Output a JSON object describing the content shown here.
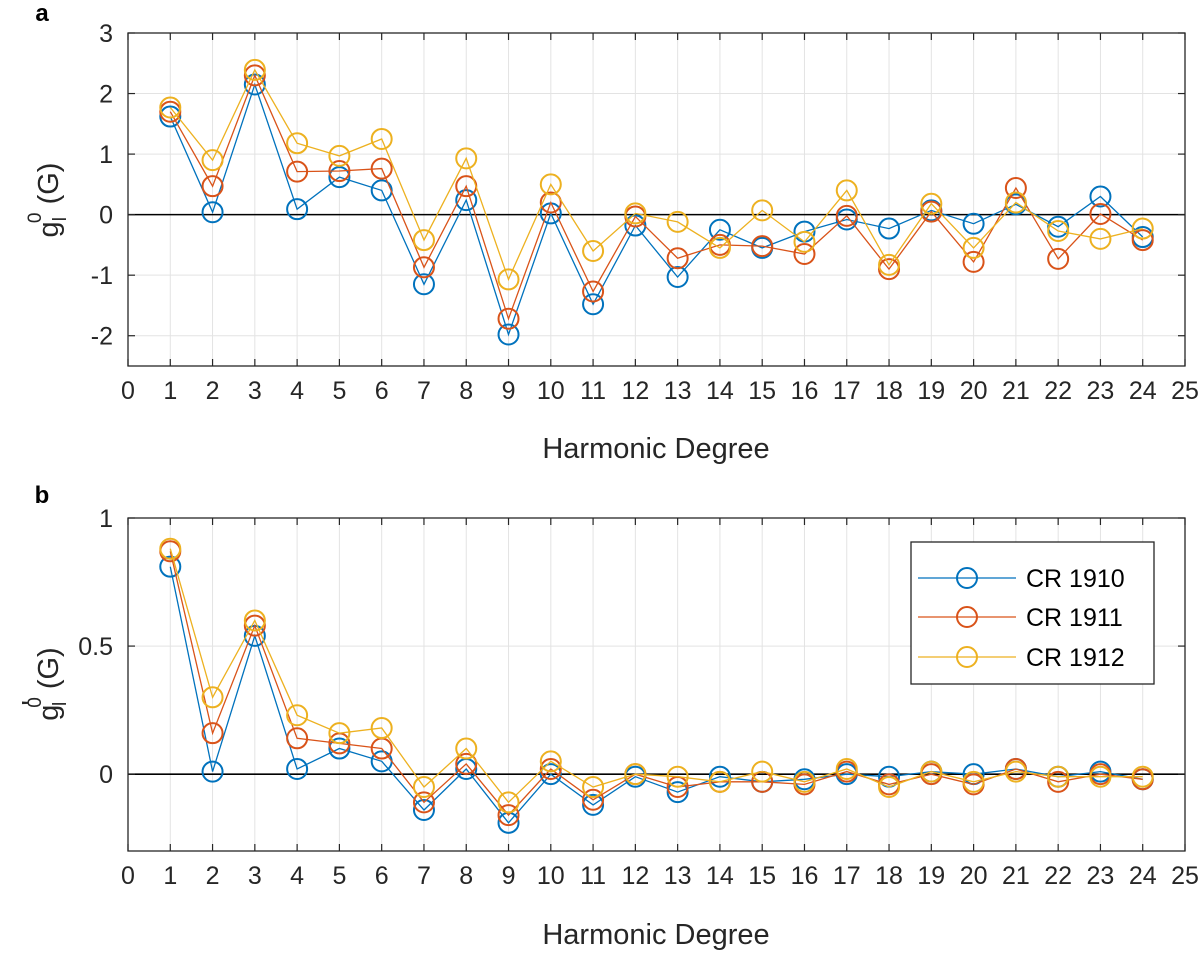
{
  "chart_data": [
    {
      "type": "line",
      "panel_label": "a",
      "xlabel": "Harmonic Degree",
      "ylabel_base": "g",
      "ylabel_sub": "l",
      "ylabel_sup": "0",
      "ylabel_unit": " (G)",
      "xlim": [
        0,
        25
      ],
      "ylim": [
        -2.5,
        3
      ],
      "x_ticks": [
        0,
        1,
        2,
        3,
        4,
        5,
        6,
        7,
        8,
        9,
        10,
        11,
        12,
        13,
        14,
        15,
        16,
        17,
        18,
        19,
        20,
        21,
        22,
        23,
        24,
        25
      ],
      "y_ticks": [
        -2,
        -1,
        0,
        1,
        2,
        3
      ],
      "y_tick_labels": [
        "-2",
        "-1",
        "0",
        "1",
        "2",
        "3"
      ],
      "grid": true,
      "zero_line": true,
      "x": [
        1,
        2,
        3,
        4,
        5,
        6,
        7,
        8,
        9,
        10,
        11,
        12,
        13,
        14,
        15,
        16,
        17,
        18,
        19,
        20,
        21,
        22,
        23,
        24
      ],
      "series": [
        {
          "name": "CR 1910",
          "color": "#0072BD",
          "values": [
            1.62,
            0.04,
            2.15,
            0.09,
            0.62,
            0.4,
            -1.15,
            0.24,
            -1.98,
            0.02,
            -1.48,
            -0.18,
            -1.03,
            -0.25,
            -0.55,
            -0.28,
            -0.08,
            -0.23,
            0.07,
            -0.15,
            0.17,
            -0.2,
            0.3,
            -0.37
          ]
        },
        {
          "name": "CR 1911",
          "color": "#D95319",
          "values": [
            1.7,
            0.47,
            2.3,
            0.71,
            0.72,
            0.76,
            -0.87,
            0.47,
            -1.72,
            0.2,
            -1.27,
            -0.03,
            -0.72,
            -0.5,
            -0.52,
            -0.65,
            -0.02,
            -0.9,
            0.05,
            -0.78,
            0.44,
            -0.73,
            0.01,
            -0.42
          ]
        },
        {
          "name": "CR 1912",
          "color": "#EDB120",
          "values": [
            1.77,
            0.9,
            2.39,
            1.18,
            0.97,
            1.25,
            -0.42,
            0.93,
            -1.07,
            0.5,
            -0.6,
            0.02,
            -0.12,
            -0.55,
            0.07,
            -0.45,
            0.4,
            -0.83,
            0.18,
            -0.55,
            0.2,
            -0.27,
            -0.4,
            -0.23
          ]
        }
      ]
    },
    {
      "type": "line",
      "panel_label": "b",
      "xlabel": "Harmonic Degree",
      "ylabel_base": "g",
      "ylabel_prime": "'",
      "ylabel_sub": "l",
      "ylabel_sup": "0",
      "ylabel_unit": " (G)",
      "xlim": [
        0,
        25
      ],
      "ylim": [
        -0.3,
        1
      ],
      "x_ticks": [
        0,
        1,
        2,
        3,
        4,
        5,
        6,
        7,
        8,
        9,
        10,
        11,
        12,
        13,
        14,
        15,
        16,
        17,
        18,
        19,
        20,
        21,
        22,
        23,
        24,
        25
      ],
      "y_ticks": [
        0,
        0.5,
        1
      ],
      "y_tick_labels": [
        "0",
        "0.5",
        "1"
      ],
      "grid": true,
      "zero_line": true,
      "legend_position": "top-right",
      "x": [
        1,
        2,
        3,
        4,
        5,
        6,
        7,
        8,
        9,
        10,
        11,
        12,
        13,
        14,
        15,
        16,
        17,
        18,
        19,
        20,
        21,
        22,
        23,
        24
      ],
      "series": [
        {
          "name": "CR 1910",
          "color": "#0072BD",
          "values": [
            0.81,
            0.01,
            0.54,
            0.02,
            0.1,
            0.05,
            -0.14,
            0.02,
            -0.19,
            0.0,
            -0.12,
            -0.01,
            -0.07,
            -0.01,
            -0.03,
            -0.02,
            0.0,
            -0.01,
            0.01,
            0.0,
            0.02,
            -0.01,
            0.01,
            -0.02
          ]
        },
        {
          "name": "CR 1911",
          "color": "#D95319",
          "values": [
            0.87,
            0.16,
            0.58,
            0.14,
            0.12,
            0.1,
            -0.11,
            0.04,
            -0.16,
            0.02,
            -0.1,
            0.0,
            -0.05,
            -0.03,
            -0.03,
            -0.04,
            0.01,
            -0.04,
            0.0,
            -0.04,
            0.02,
            -0.03,
            0.0,
            -0.02
          ]
        },
        {
          "name": "CR 1912",
          "color": "#EDB120",
          "values": [
            0.88,
            0.3,
            0.6,
            0.23,
            0.16,
            0.18,
            -0.05,
            0.1,
            -0.11,
            0.05,
            -0.05,
            0.0,
            -0.01,
            -0.03,
            0.01,
            -0.03,
            0.02,
            -0.05,
            0.01,
            -0.03,
            0.01,
            -0.01,
            -0.01,
            -0.01
          ]
        }
      ],
      "legend": [
        "CR 1910",
        "CR 1911",
        "CR 1912"
      ]
    }
  ]
}
